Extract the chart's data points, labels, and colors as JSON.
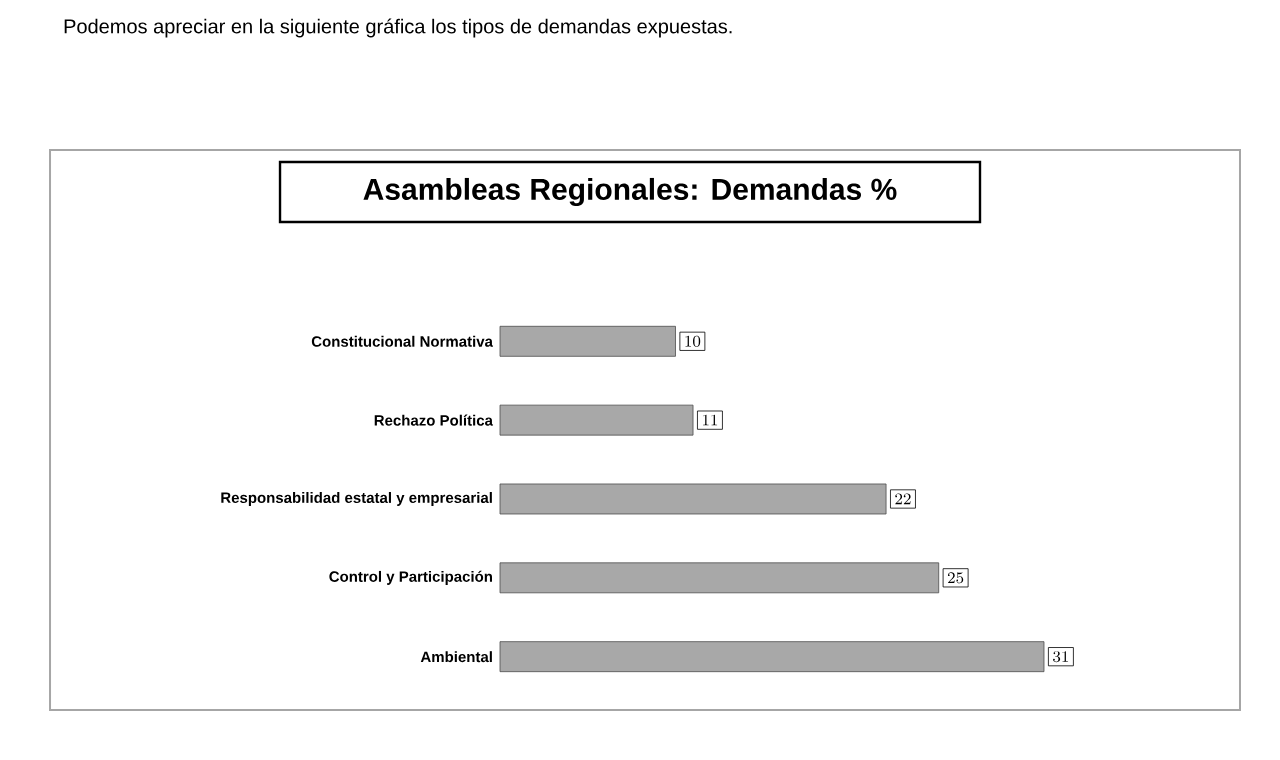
{
  "chart_data": {
    "type": "bar",
    "orientation": "horizontal",
    "title": "Asambleas Regionales: Demandas  %",
    "annotations": [
      "Podemos apreciar en la siguiente gráfica los tipos de demandas expuestas."
    ],
    "categories": [
      "Constitucional Normativa",
      "Rechazo Política",
      "Responsabilidad estatal y empresarial",
      "Control y Participación",
      "Ambiental"
    ],
    "values": [
      10,
      11,
      22,
      25,
      31
    ],
    "color": "#a8a8a8",
    "data_labels": true
  }
}
